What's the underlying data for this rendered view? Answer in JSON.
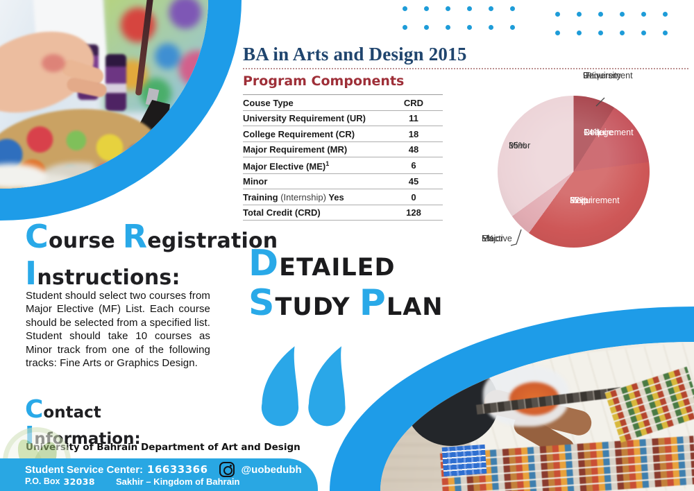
{
  "accent": {
    "blue": "#29A7E3",
    "band_blue": "#1E9CE8",
    "dot_blue": "#1E9CD8",
    "title_navy": "#20456E",
    "heading_maroon": "#9E2F38"
  },
  "header": {
    "title": "BA in Arts and Design 2015"
  },
  "program": {
    "heading": "Program Components",
    "col_course": "Couse Type",
    "col_crd": "CRD",
    "rows": [
      {
        "label": "University Requirement (UR)",
        "value": "11"
      },
      {
        "label": "College Requirement (CR)",
        "value": "18"
      },
      {
        "label": "Major Requirement (MR)",
        "value": "48"
      },
      {
        "label": "Major Elective (ME)",
        "sup": "1",
        "value": "6"
      },
      {
        "label": "Minor",
        "value": "45"
      },
      {
        "label": "Training",
        "note": "(Internship)",
        "suffix": "Yes",
        "value": "0"
      },
      {
        "label": "Total Credit (CRD)",
        "value": "128"
      }
    ]
  },
  "chart_data": {
    "type": "pie",
    "labels": [
      "University Requirement",
      "College Requirement",
      "Major Requirement",
      "Major Elective",
      "Minor"
    ],
    "values": [
      9,
      14,
      37,
      5,
      35
    ],
    "unit": "percent",
    "colors": [
      "#A8434B",
      "#C5525A",
      "#CE5757",
      "#E2ACB3",
      "#ECD3D7"
    ],
    "start_angle_deg": 0,
    "direction": "clockwise",
    "legend_position": "labels-on-slices",
    "label_text": {
      "ur1": "University",
      "ur2": "Requirement",
      "ur_pct": "9%",
      "cr1": "College",
      "cr2": "Requirement",
      "cr_pct": "14%",
      "mr1": "Major",
      "mr2": "Requirement",
      "mr_pct": "37%",
      "me1": "Major",
      "me2": "Elective",
      "me_pct": "5%",
      "minor1": "Minor",
      "minor_pct": "35%"
    }
  },
  "registration": {
    "w1_initial": "C",
    "w1_rest": "ourse ",
    "w2_initial": "R",
    "w2_rest": "egistration",
    "w3_initial": "I",
    "w3_rest": "nstructions:",
    "body": "Student should select two courses from Major Elective (MF) List. Each course should be selected from a specified list. Student should take 10 courses as Minor track from one of the following tracks: Fine Arts or Graphics Design."
  },
  "study_plan": {
    "w1_initial": "D",
    "w1_rest": "ETAILED",
    "w2_initial": "S",
    "w2_rest": "TUDY ",
    "w3_initial": "P",
    "w3_rest": "LAN"
  },
  "contact": {
    "w1_initial": "C",
    "w1_rest": "ontact",
    "w2_initial": "I",
    "w2_rest": "nformation:",
    "org": "University of Bahrain Department of Art and Design"
  },
  "footer": {
    "service": "Student Service Center:",
    "phone": "16633366",
    "instagram": "@uobedubh",
    "po_box": "P.O. Box",
    "po_number": "32038",
    "location": "Sakhir – Kingdom of Bahrain"
  }
}
